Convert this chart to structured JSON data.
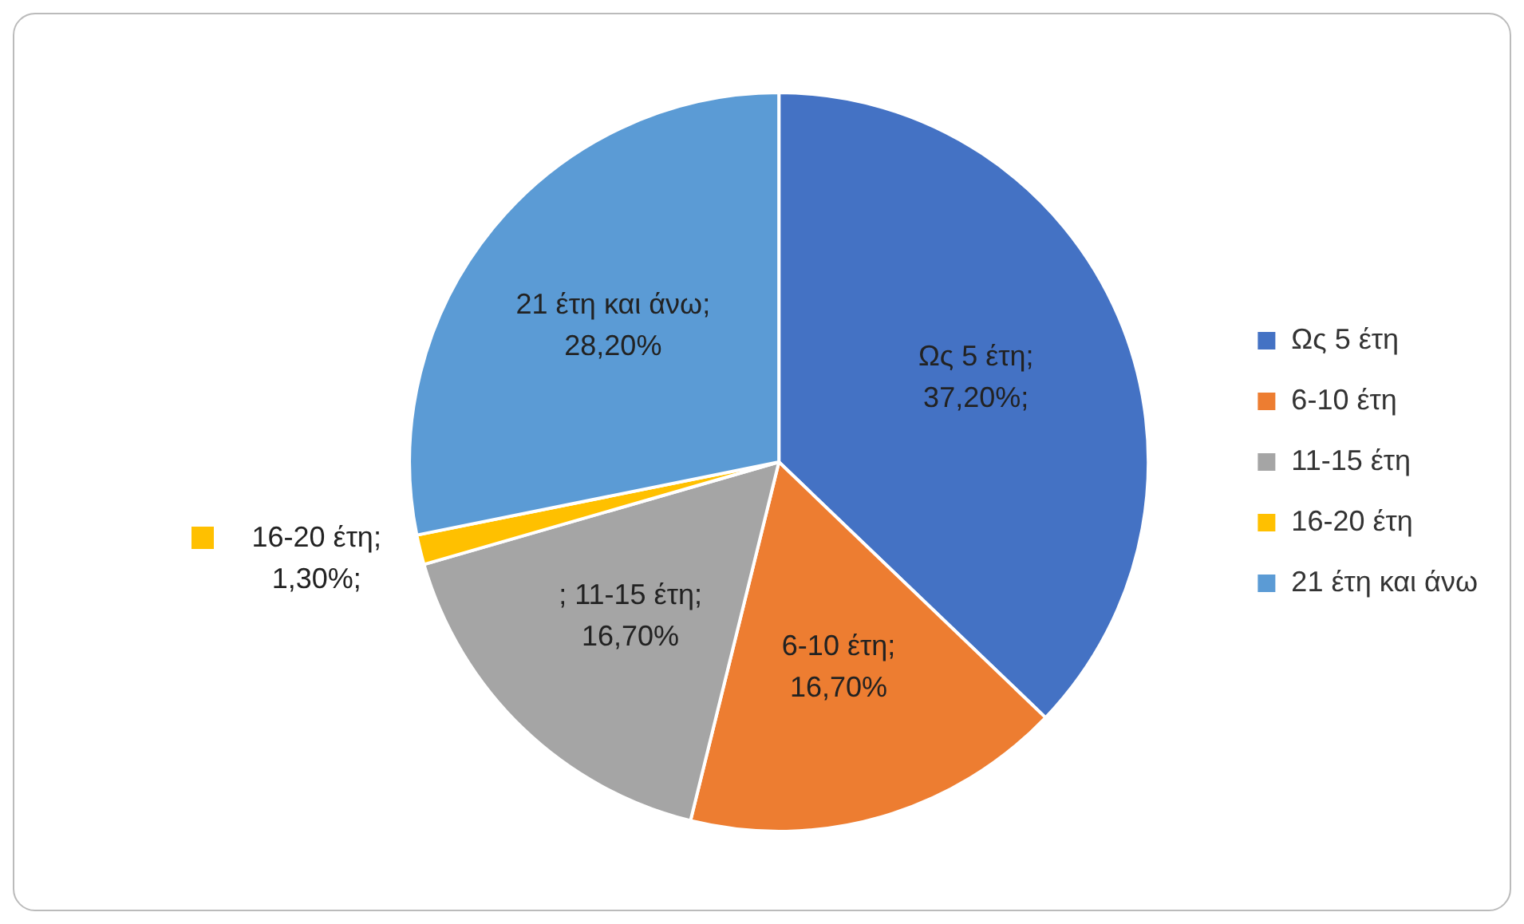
{
  "chart_data": {
    "type": "pie",
    "categories": [
      "Ως 5 έτη",
      "6-10 έτη",
      "11-15 έτη",
      "16-20 έτη",
      "21 έτη και άνω"
    ],
    "values": [
      37.2,
      16.7,
      16.7,
      1.3,
      28.2
    ],
    "colors": [
      "#4472c4",
      "#ed7d31",
      "#a5a5a5",
      "#ffc000",
      "#5b9bd5"
    ],
    "value_labels": [
      "Ως 5 έτη; 37,20%;",
      "6-10 έτη; 16,70%",
      "; 11-15 έτη; 16,70%",
      "16-20 έτη; 1,30%;",
      "21 έτη και άνω; 28,20%"
    ],
    "legend": "right"
  }
}
